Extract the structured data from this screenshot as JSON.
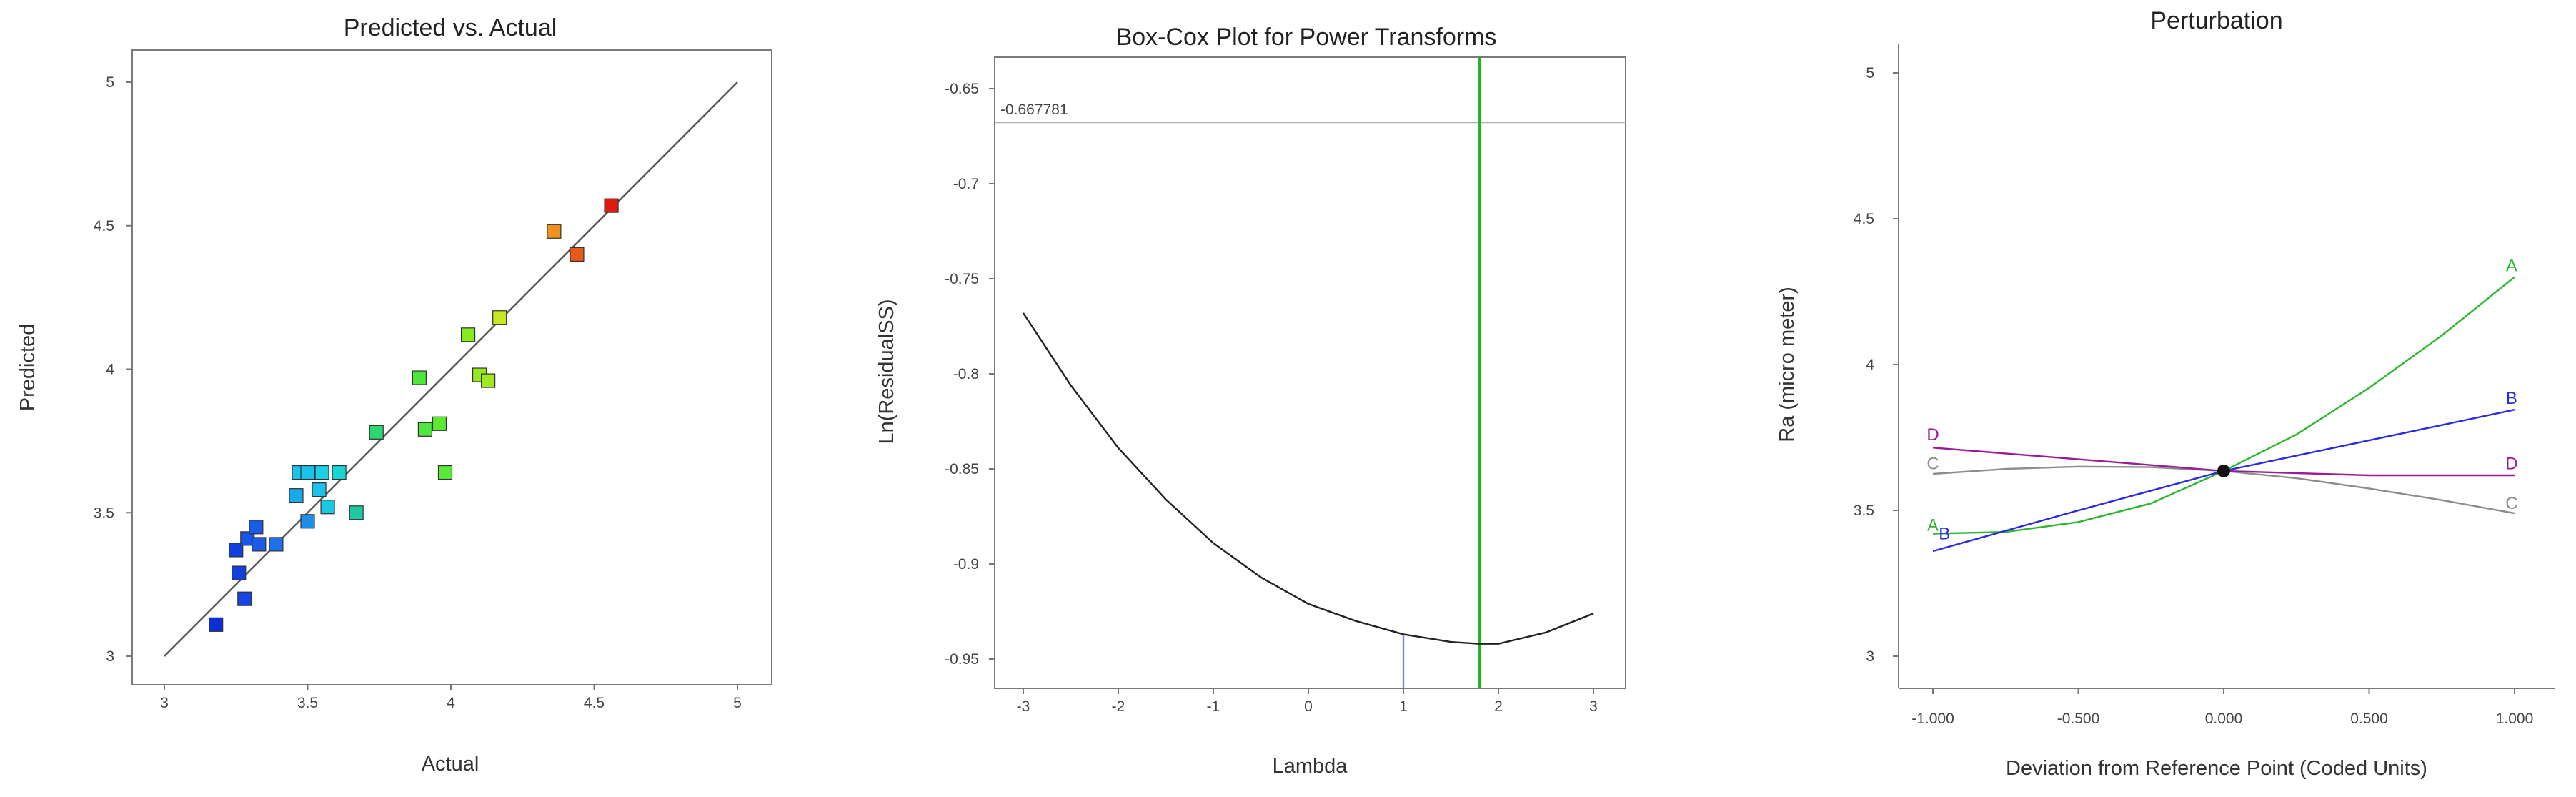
{
  "chart_data": [
    {
      "type": "scatter",
      "title": "Predicted vs. Actual",
      "xlabel": "Actual",
      "ylabel": "Predicted",
      "xlim": [
        3,
        5
      ],
      "ylim": [
        3,
        5
      ],
      "x_ticks": [
        "3",
        "3.5",
        "4",
        "4.5",
        "5"
      ],
      "y_ticks": [
        "3",
        "3.5",
        "4",
        "4.5",
        "5"
      ],
      "reference_line": {
        "x": [
          3,
          5
        ],
        "y": [
          3,
          5
        ]
      },
      "points": [
        {
          "x": 3.18,
          "y": 3.11,
          "color": "#0a2fd8"
        },
        {
          "x": 3.25,
          "y": 3.37,
          "color": "#1040e0"
        },
        {
          "x": 3.26,
          "y": 3.29,
          "color": "#1040e0"
        },
        {
          "x": 3.28,
          "y": 3.2,
          "color": "#1545e6"
        },
        {
          "x": 3.29,
          "y": 3.41,
          "color": "#1a55ea"
        },
        {
          "x": 3.32,
          "y": 3.45,
          "color": "#1a5bea"
        },
        {
          "x": 3.33,
          "y": 3.39,
          "color": "#1a5bea"
        },
        {
          "x": 3.39,
          "y": 3.39,
          "color": "#1f70ec"
        },
        {
          "x": 3.46,
          "y": 3.56,
          "color": "#19a8e8"
        },
        {
          "x": 3.47,
          "y": 3.64,
          "color": "#19c3ea"
        },
        {
          "x": 3.5,
          "y": 3.64,
          "color": "#19c3ea"
        },
        {
          "x": 3.5,
          "y": 3.47,
          "color": "#1e8ee8"
        },
        {
          "x": 3.54,
          "y": 3.58,
          "color": "#19c3ea"
        },
        {
          "x": 3.55,
          "y": 3.64,
          "color": "#19d0e6"
        },
        {
          "x": 3.57,
          "y": 3.52,
          "color": "#19c9e2"
        },
        {
          "x": 3.61,
          "y": 3.64,
          "color": "#19d6d6"
        },
        {
          "x": 3.67,
          "y": 3.5,
          "color": "#1ec8a0"
        },
        {
          "x": 3.74,
          "y": 3.78,
          "color": "#2ad870"
        },
        {
          "x": 3.89,
          "y": 3.97,
          "color": "#4ee83c"
        },
        {
          "x": 3.91,
          "y": 3.79,
          "color": "#4ee83c"
        },
        {
          "x": 3.96,
          "y": 3.81,
          "color": "#5aea30"
        },
        {
          "x": 3.98,
          "y": 3.64,
          "color": "#58ea36"
        },
        {
          "x": 4.06,
          "y": 4.12,
          "color": "#86ec20"
        },
        {
          "x": 4.1,
          "y": 3.98,
          "color": "#92ea1e"
        },
        {
          "x": 4.13,
          "y": 3.96,
          "color": "#a2e81e"
        },
        {
          "x": 4.17,
          "y": 4.18,
          "color": "#c6e820"
        },
        {
          "x": 4.36,
          "y": 4.48,
          "color": "#f09020"
        },
        {
          "x": 4.44,
          "y": 4.4,
          "color": "#e85a1a"
        },
        {
          "x": 4.56,
          "y": 4.57,
          "color": "#e01a10"
        }
      ]
    },
    {
      "type": "line",
      "title": "Box-Cox Plot for Power Transforms",
      "xlabel": "Lambda",
      "ylabel": "Ln(ResidualSS)",
      "xlim": [
        -3.3,
        3.3
      ],
      "ylim": [
        -0.967,
        -0.63
      ],
      "x_ticks": [
        "-3",
        "-2",
        "-1",
        "0",
        "1",
        "2",
        "3"
      ],
      "y_ticks": [
        "-0.65",
        "-0.7",
        "-0.75",
        "-0.8",
        "-0.85",
        "-0.9",
        "-0.95"
      ],
      "series": [
        {
          "x": [
            -3,
            -2.5,
            -2,
            -1.5,
            -1,
            -0.5,
            0,
            0.5,
            1,
            1.5,
            1.8,
            2,
            2.5,
            3
          ],
          "y": [
            -0.768,
            -0.806,
            -0.839,
            -0.866,
            -0.889,
            -0.907,
            -0.921,
            -0.93,
            -0.937,
            -0.941,
            -0.942,
            -0.942,
            -0.936,
            -0.926
          ]
        }
      ],
      "hline_value": -0.667781,
      "hline_label": "-0.667781",
      "current_lambda": 1,
      "best_lambda": 1.8,
      "colors": {
        "curve": "#222222",
        "best": "#22b422",
        "current": "#7a80e8",
        "ci": "#b0b0b0"
      }
    },
    {
      "type": "line",
      "title": "Perturbation",
      "xlabel": "Deviation from Reference Point (Coded Units)",
      "ylabel": "Ra (micro meter)",
      "xlim": [
        -1.1,
        1.1
      ],
      "ylim": [
        2.93,
        5.06
      ],
      "x_ticks": [
        "-1.000",
        "-0.500",
        "0.000",
        "0.500",
        "1.000"
      ],
      "y_ticks": [
        "3",
        "3.5",
        "4",
        "4.5",
        "5"
      ],
      "reference_point": {
        "x": 0,
        "y": 3.635
      },
      "series": [
        {
          "name": "A",
          "color": "#2fb52f",
          "x": [
            -1,
            -0.75,
            -0.5,
            -0.25,
            0,
            0.25,
            0.5,
            0.75,
            1
          ],
          "y": [
            3.42,
            3.426,
            3.46,
            3.524,
            3.635,
            3.76,
            3.92,
            4.1,
            4.3
          ]
        },
        {
          "name": "B",
          "color": "#2a2ae0",
          "x": [
            -1,
            -0.5,
            0,
            0.5,
            1
          ],
          "y": [
            3.36,
            3.5,
            3.635,
            3.74,
            3.845
          ]
        },
        {
          "name": "C",
          "color": "#8c8c8c",
          "x": [
            -1,
            -0.75,
            -0.5,
            -0.25,
            0,
            0.25,
            0.5,
            0.75,
            1
          ],
          "y": [
            3.625,
            3.642,
            3.65,
            3.648,
            3.635,
            3.61,
            3.575,
            3.535,
            3.49
          ]
        },
        {
          "name": "D",
          "color": "#9a1a9a",
          "x": [
            -1,
            -0.5,
            0,
            0.5,
            1
          ],
          "y": [
            3.715,
            3.675,
            3.635,
            3.62,
            3.62
          ]
        }
      ],
      "labels": [
        {
          "text": "A",
          "color": "#2fb52f",
          "x": -1,
          "y": 3.45
        },
        {
          "text": "B",
          "color": "#2a2ae0",
          "x": -0.96,
          "y": 3.42
        },
        {
          "text": "C",
          "color": "#8c8c8c",
          "x": -1,
          "y": 3.66
        },
        {
          "text": "D",
          "color": "#9a1a9a",
          "x": -1,
          "y": 3.76
        },
        {
          "text": "A",
          "color": "#2fb52f",
          "x": 0.99,
          "y": 4.34
        },
        {
          "text": "B",
          "color": "#2a2ae0",
          "x": 0.99,
          "y": 3.885
        },
        {
          "text": "D",
          "color": "#9a1a9a",
          "x": 0.99,
          "y": 3.66
        },
        {
          "text": "C",
          "color": "#8c8c8c",
          "x": 0.99,
          "y": 3.525
        }
      ]
    }
  ]
}
